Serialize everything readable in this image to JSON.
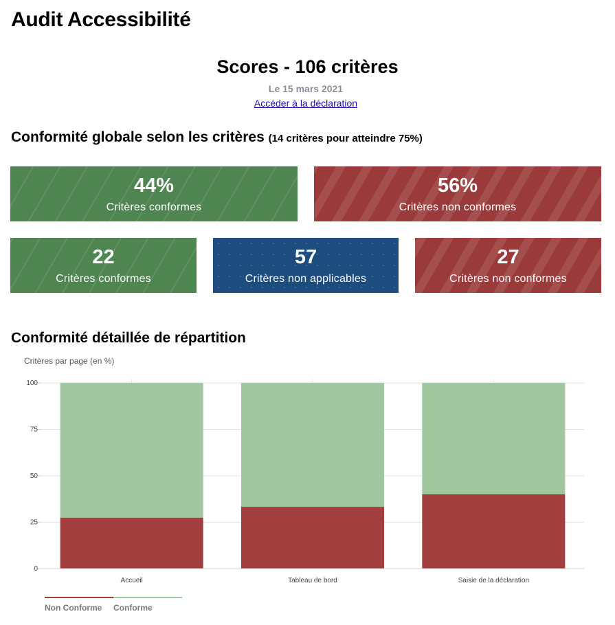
{
  "header": {
    "title": "Audit Accessibilité"
  },
  "scores": {
    "title": "Scores - 106 critères",
    "date": "Le 15 mars 2021",
    "link_label": "Accéder à la déclaration"
  },
  "global": {
    "heading": "Conformité globale selon les critères",
    "note": "(14 critères pour atteindre 75%)",
    "cards": [
      {
        "value": "44%",
        "label": "Critères conformes",
        "color": "#4f8550"
      },
      {
        "value": "56%",
        "label": "Critères non conformes",
        "color": "#9b3a3a"
      }
    ],
    "counts": [
      {
        "value": "22",
        "label": "Critères conformes",
        "color": "#4f8550"
      },
      {
        "value": "57",
        "label": "Critères non applicables",
        "color": "#1d4c7f"
      },
      {
        "value": "27",
        "label": "Critères non conformes",
        "color": "#9b3a3a"
      }
    ]
  },
  "detail": {
    "heading": "Conformité détaillée de répartition",
    "ylabel": "Critères par page (en %)"
  },
  "chart_data": {
    "type": "bar",
    "stacked": true,
    "categories": [
      "Accueil",
      "Tableau de bord",
      "Saisie de la déclaration"
    ],
    "series": [
      {
        "name": "Non Conforme",
        "values": [
          27.5,
          33.3,
          40
        ],
        "color": "#a33e3f"
      },
      {
        "name": "Conforme",
        "values": [
          72.5,
          66.7,
          60
        ],
        "color": "#a0c79f"
      }
    ],
    "ylim": [
      0,
      100
    ],
    "yticks": [
      0,
      25,
      50,
      75,
      100
    ],
    "grid": true,
    "legend_position": "bottom-left"
  }
}
